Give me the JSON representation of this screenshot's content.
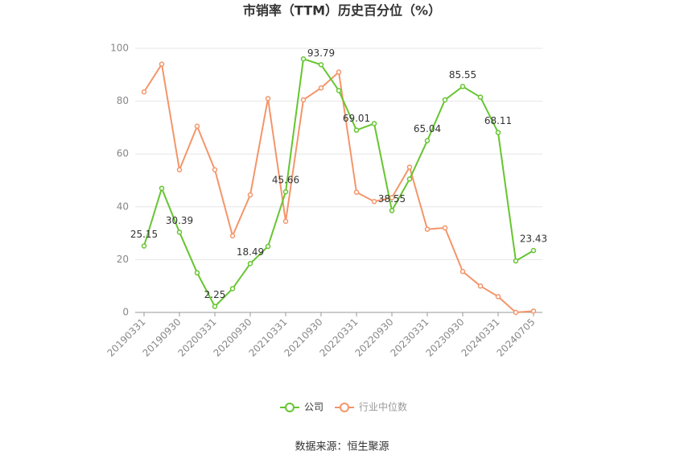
{
  "chart_data": {
    "type": "line",
    "title": "市销率（TTM）历史百分位（%）",
    "source": "数据来源：恒生聚源",
    "categories": [
      "20190331",
      null,
      "20190930",
      null,
      "20200331",
      null,
      "20200930",
      null,
      "20210331",
      null,
      "20210930",
      null,
      "20220331",
      null,
      "20220930",
      null,
      "20230331",
      null,
      "20230930",
      null,
      "20240331",
      null,
      "20240705"
    ],
    "series": [
      {
        "name": "公司",
        "color": "#66c530",
        "values": [
          25.15,
          47,
          30.39,
          15,
          2.25,
          9,
          18.49,
          25,
          45.66,
          96,
          93.79,
          84,
          69.01,
          71.5,
          38.55,
          50.5,
          65.04,
          80.5,
          85.55,
          81.5,
          68.11,
          19.5,
          23.43
        ]
      },
      {
        "name": "行业中位数",
        "color": "#f4956a",
        "values": [
          83.5,
          94,
          54,
          70.5,
          54,
          29,
          44.5,
          81,
          34.5,
          80.5,
          85,
          91,
          45.5,
          42,
          43.5,
          55,
          31.5,
          32,
          15.5,
          10,
          6,
          0,
          0.5
        ]
      }
    ],
    "ylim": [
      0,
      100
    ],
    "yticks": [
      0,
      20,
      40,
      60,
      80,
      100
    ],
    "grid": true,
    "legend": "bottom"
  }
}
